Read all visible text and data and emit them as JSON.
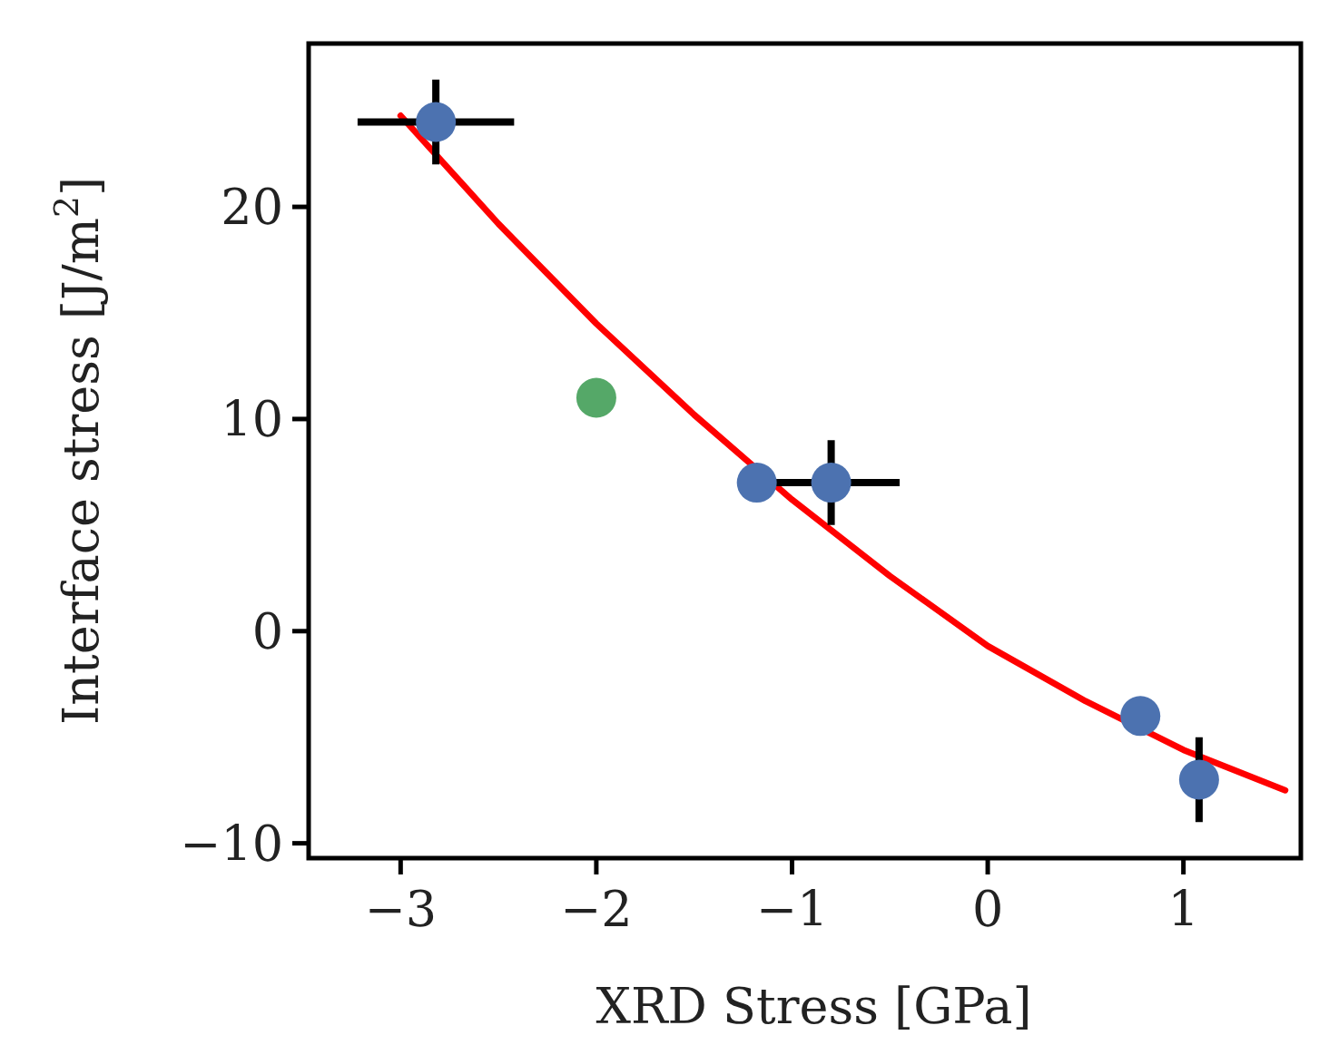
{
  "chart_data": {
    "type": "scatter",
    "xlabel": "XRD Stress [GPa]",
    "ylabel": "Interface stress [J/m$^{2}$]",
    "xlim": [
      -3.47,
      1.6
    ],
    "ylim": [
      -10.7,
      27.7
    ],
    "xticks": [
      {
        "value": -3,
        "label": "−3"
      },
      {
        "value": -2,
        "label": "−2"
      },
      {
        "value": -1,
        "label": "−1"
      },
      0,
      1
    ],
    "yticks": [
      {
        "value": -10,
        "label": "−10"
      },
      0,
      10,
      20
    ],
    "grid": false,
    "series": [
      {
        "type": "line",
        "color": "#ff0000",
        "x": [
          -3,
          -2.5,
          -2,
          -1.5,
          -1,
          -0.5,
          0,
          0.5,
          1,
          1.52
        ],
        "values": [
          24.3,
          19.2,
          14.5,
          10.2,
          6.2,
          2.6,
          -0.7,
          -3.3,
          -5.6,
          -7.5
        ]
      },
      {
        "color": "#4c72b0",
        "x": [
          -2.82,
          -1.18,
          -0.8,
          0.78,
          1.08
        ],
        "values": [
          24,
          7,
          7,
          -4,
          -7
        ],
        "errors": [
          2,
          null,
          2,
          null,
          2
        ],
        "xerrors": [
          0.4,
          null,
          0.35,
          null,
          null
        ]
      },
      {
        "color": "#55a868",
        "x": [
          -2
        ],
        "values": [
          11
        ]
      }
    ]
  }
}
